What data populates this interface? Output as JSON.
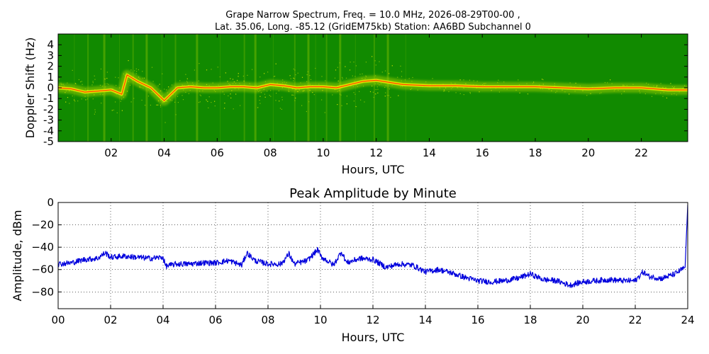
{
  "spectrum": {
    "title_line1": "Grape Narrow Spectrum, Freq. = 10.0 MHz, 2026-08-29T00-00 ,",
    "title_line2": "Lat.  35.06, Long. -85.12 (GridEM75kb) Station: AA6BD Subchannel 0",
    "xlabel": "Hours, UTC",
    "ylabel": "Doppler Shift (Hz)",
    "colors": {
      "background": "#118a00",
      "mid": "#9acd00",
      "high": "#f5f000",
      "peak": "#ff2000"
    }
  },
  "amplitude": {
    "title": "Peak Amplitude by Minute",
    "xlabel": "Hours, UTC",
    "ylabel": "Amplitude, dBm",
    "line_color": "#0000dd"
  },
  "chart_data": [
    {
      "type": "heatmap",
      "title": "Grape Narrow Spectrum, Freq. = 10.0 MHz, 2026-08-29T00-00 , Lat.  35.06, Long. -85.12 (GridEM75kb) Station: AA6BD Subchannel 0",
      "xlabel": "Hours, UTC",
      "ylabel": "Doppler Shift (Hz)",
      "xlim": [
        0,
        23.75
      ],
      "ylim": [
        -5,
        5
      ],
      "x_ticks": [
        2,
        4,
        6,
        8,
        10,
        12,
        14,
        16,
        18,
        20,
        22
      ],
      "x_tick_labels": [
        "02",
        "04",
        "06",
        "08",
        "10",
        "12",
        "14",
        "16",
        "18",
        "20",
        "22"
      ],
      "y_ticks": [
        4,
        3,
        2,
        1,
        0,
        -1,
        -2,
        -3,
        -4,
        -5
      ],
      "y_tick_labels": [
        "4",
        "3",
        "2",
        "1",
        "0",
        "-1",
        "-2",
        "-3",
        "-4",
        "-5"
      ],
      "grid": false,
      "peak_doppler_trace": {
        "hours": [
          0,
          0.5,
          1,
          1.5,
          2,
          2.4,
          2.6,
          3,
          3.5,
          4,
          4.5,
          5,
          5.5,
          6,
          6.5,
          7,
          7.5,
          8,
          8.5,
          9,
          9.5,
          10,
          10.5,
          11,
          11.5,
          12,
          12.5,
          13,
          14,
          15,
          16,
          17,
          18,
          19,
          20,
          21,
          22,
          23,
          23.75
        ],
        "doppler_hz": [
          0,
          -0.1,
          -0.4,
          -0.3,
          -0.2,
          -0.6,
          1.2,
          0.6,
          0,
          -1.2,
          0,
          0.1,
          0,
          0,
          0.1,
          0.1,
          0,
          0.3,
          0.2,
          0,
          0.1,
          0.1,
          0,
          0.3,
          0.6,
          0.7,
          0.5,
          0.3,
          0.2,
          0.2,
          0.1,
          0.1,
          0.1,
          0,
          -0.1,
          0,
          0,
          -0.2,
          -0.2
        ]
      }
    },
    {
      "type": "line",
      "title": "Peak Amplitude by Minute",
      "xlabel": "Hours, UTC",
      "ylabel": "Amplitude, dBm",
      "xlim": [
        0,
        24
      ],
      "ylim": [
        -95,
        0
      ],
      "x_ticks": [
        0,
        2,
        4,
        6,
        8,
        10,
        12,
        14,
        16,
        18,
        20,
        22,
        24
      ],
      "x_tick_labels": [
        "00",
        "02",
        "04",
        "06",
        "08",
        "10",
        "12",
        "14",
        "16",
        "18",
        "20",
        "22",
        "24"
      ],
      "y_ticks": [
        0,
        -20,
        -40,
        -60,
        -80
      ],
      "y_tick_labels": [
        "0",
        "−20",
        "−40",
        "−60",
        "−80"
      ],
      "grid": true,
      "series": [
        {
          "x": [
            0,
            0.5,
            1,
            1.5,
            1.8,
            2,
            2.5,
            3,
            3.5,
            4,
            4.1,
            4.5,
            5,
            5.5,
            6,
            6.5,
            7,
            7.2,
            7.5,
            8,
            8.5,
            8.8,
            9,
            9.5,
            9.9,
            10,
            10.5,
            10.8,
            11,
            11.5,
            12,
            12.5,
            13,
            13.5,
            14,
            14.5,
            15,
            15.5,
            16,
            16.5,
            17,
            17.5,
            18,
            18.5,
            19,
            19.5,
            20,
            20.5,
            21,
            21.5,
            22,
            22.3,
            22.5,
            23,
            23.5,
            23.9,
            24
          ],
          "y": [
            -55,
            -54,
            -51,
            -50,
            -45,
            -49,
            -48,
            -49,
            -50,
            -49,
            -57,
            -55,
            -55,
            -54,
            -54,
            -52,
            -56,
            -45,
            -52,
            -55,
            -55,
            -46,
            -55,
            -52,
            -42,
            -48,
            -56,
            -44,
            -54,
            -50,
            -51,
            -58,
            -55,
            -56,
            -62,
            -60,
            -63,
            -67,
            -70,
            -71,
            -70,
            -68,
            -64,
            -69,
            -70,
            -74,
            -71,
            -70,
            -69,
            -70,
            -70,
            -62,
            -66,
            -68,
            -64,
            -58,
            -2
          ]
        }
      ]
    }
  ]
}
